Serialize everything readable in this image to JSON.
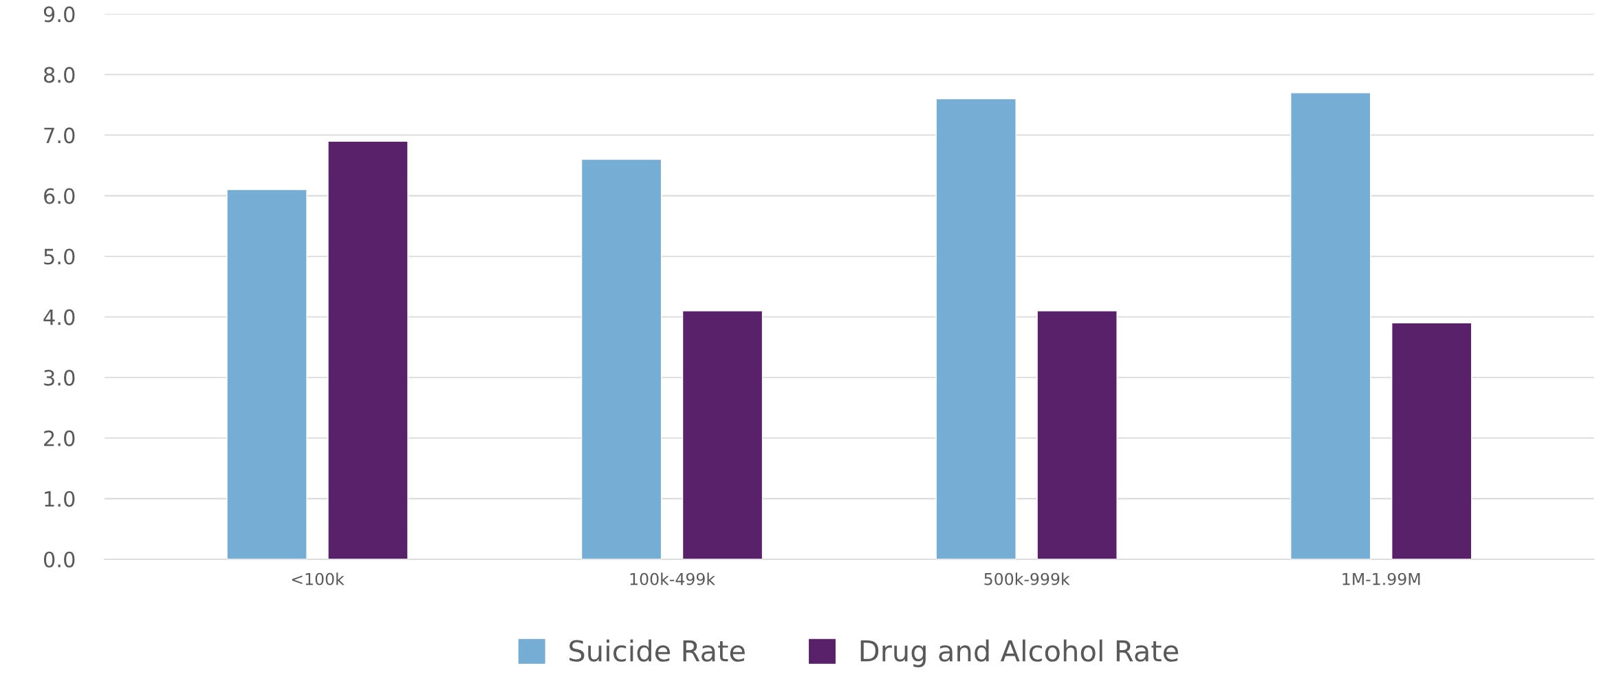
{
  "chart_data": {
    "type": "bar",
    "categories": [
      "<100k",
      "100k-499k",
      "500k-999k",
      "1M-1.99M"
    ],
    "series": [
      {
        "name": "Suicide Rate",
        "color": "#76add5",
        "values": [
          6.1,
          6.6,
          7.6,
          7.7
        ]
      },
      {
        "name": "Drug and Alcohol Rate",
        "color": "#5a216b",
        "values": [
          6.9,
          4.1,
          4.1,
          3.9
        ]
      }
    ],
    "ylim": [
      0,
      9
    ],
    "yticks": [
      {
        "value": 0,
        "label": "0.0"
      },
      {
        "value": 1,
        "label": "1.0"
      },
      {
        "value": 2,
        "label": "2.0"
      },
      {
        "value": 3,
        "label": "3.0"
      },
      {
        "value": 4,
        "label": "4.0"
      },
      {
        "value": 5,
        "label": "5.0"
      },
      {
        "value": 6,
        "label": "6.0"
      },
      {
        "value": 7,
        "label": "7.0"
      },
      {
        "value": 8,
        "label": "8.0"
      },
      {
        "value": 9,
        "label": "9.0"
      }
    ],
    "grid": "y",
    "legend": "bottom"
  }
}
